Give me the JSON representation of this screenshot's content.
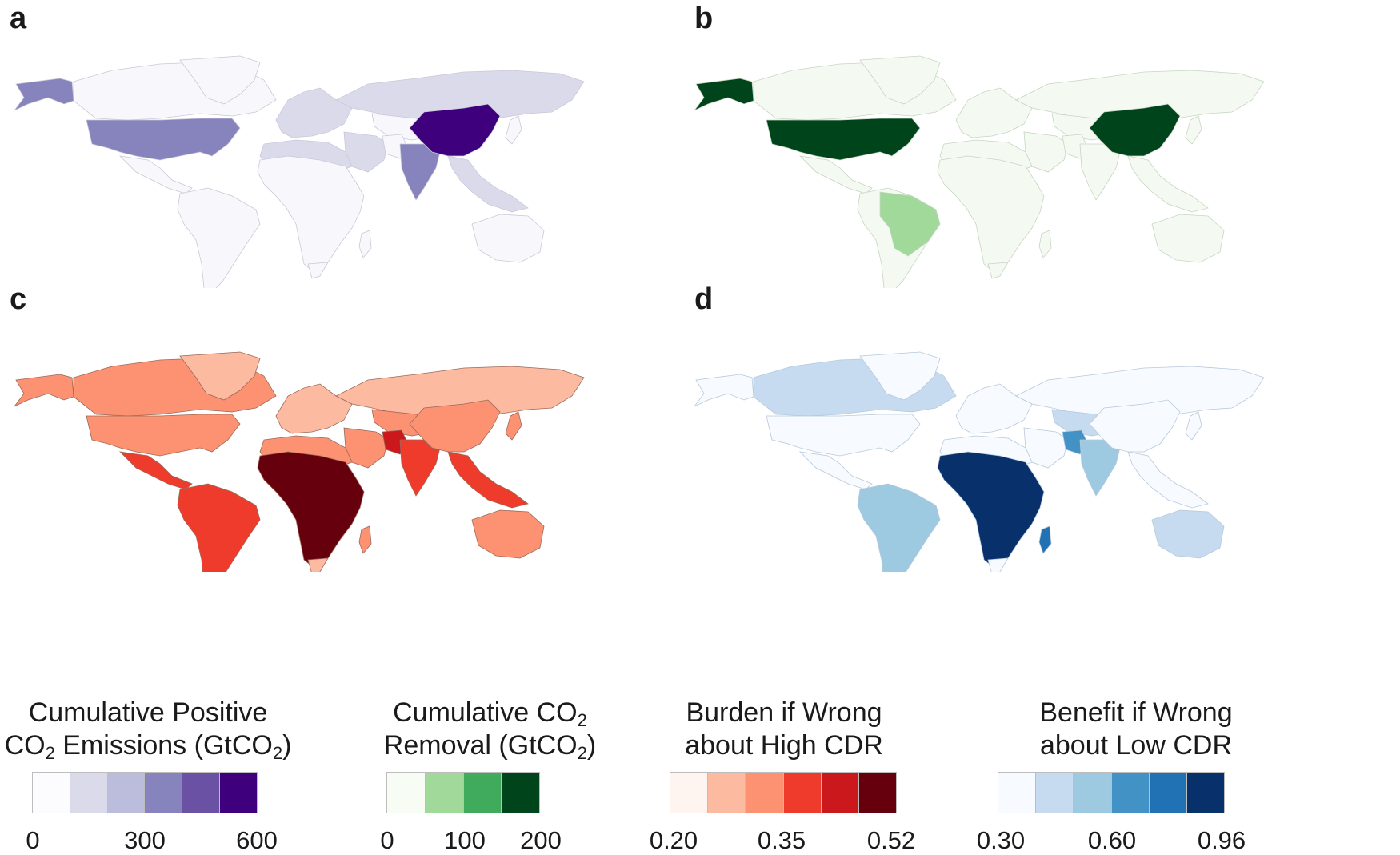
{
  "panels": [
    {
      "letter": "a",
      "variable": "Cumulative Positive CO2 Emissions",
      "base_color": "#f8f8fc",
      "border_color": "#c9c9d8",
      "highlights": {
        "alaska": "#8683bd",
        "usa": "#8683bd",
        "china": "#3f007d",
        "india": "#8683bd",
        "europe": "#dadaeb",
        "russia": "#dadaeb",
        "north_africa": "#dadaeb",
        "middle_east": "#dadaeb",
        "southeast_asia": "#dadaeb"
      }
    },
    {
      "letter": "b",
      "variable": "Cumulative CO2 Removal",
      "base_color": "#f4faf2",
      "border_color": "#c6d6c2",
      "highlights": {
        "alaska": "#00441b",
        "usa": "#00441b",
        "china": "#00441b",
        "brazil": "#a1d99b"
      }
    },
    {
      "letter": "c",
      "variable": "Burden if Wrong about High CDR",
      "base_color": "#fc9272",
      "border_color": "#9a6a5a",
      "highlights": {
        "russia": "#fcbba1",
        "europe": "#fcbba1",
        "greenland": "#fcbba1",
        "south_america": "#ef3b2c",
        "central_america": "#ef3b2c",
        "africa": "#67000d",
        "india": "#ef3b2c",
        "pakistan": "#cb181d",
        "southeast_asia": "#ef3b2c",
        "southern_africa_tip": "#fcbba1"
      }
    },
    {
      "letter": "d",
      "variable": "Benefit if Wrong about Low CDR",
      "base_color": "#f7fbff",
      "border_color": "#b7c8da",
      "highlights": {
        "canada": "#c6dbef",
        "central_asia": "#c6dbef",
        "australia": "#c6dbef",
        "south_america": "#9ecae1",
        "africa": "#08306b",
        "pakistan": "#4292c6",
        "india": "#9ecae1",
        "madagascar": "#2171b5"
      }
    }
  ],
  "legends": [
    {
      "title_line1": "Cumulative Positive",
      "title_line2_a": "CO",
      "title_line2_sub": "2",
      "title_line2_b": " Emissions (GtCO",
      "title_line2_sub2": "2",
      "title_line2_c": ")",
      "colors": [
        "#fcfbfd",
        "#dadaeb",
        "#bcbddc",
        "#8683bd",
        "#6a51a3",
        "#3f007d"
      ],
      "ticks": [
        "0",
        "300",
        "600"
      ]
    },
    {
      "title_line1": "Cumulative CO",
      "title_line1_sub": "2",
      "title_line2_a": "Removal (GtCO",
      "title_line2_sub": "2",
      "title_line2_b": ")",
      "colors": [
        "#f7fcf5",
        "#a1d99b",
        "#41ab5d",
        "#00441b"
      ],
      "ticks": [
        "0",
        "100",
        "200"
      ]
    },
    {
      "title_line1": "Burden if Wrong",
      "title_line2": "about High CDR",
      "colors": [
        "#fff5f0",
        "#fcbba1",
        "#fc9272",
        "#ef3b2c",
        "#cb181d",
        "#67000d"
      ],
      "ticks": [
        "0.20",
        "0.35",
        "0.52"
      ]
    },
    {
      "title_line1": "Benefit if Wrong",
      "title_line2": "about Low CDR",
      "colors": [
        "#f7fbff",
        "#c6dbef",
        "#9ecae1",
        "#4292c6",
        "#2171b5",
        "#08306b"
      ],
      "ticks": [
        "0.30",
        "0.60",
        "0.96"
      ]
    }
  ]
}
